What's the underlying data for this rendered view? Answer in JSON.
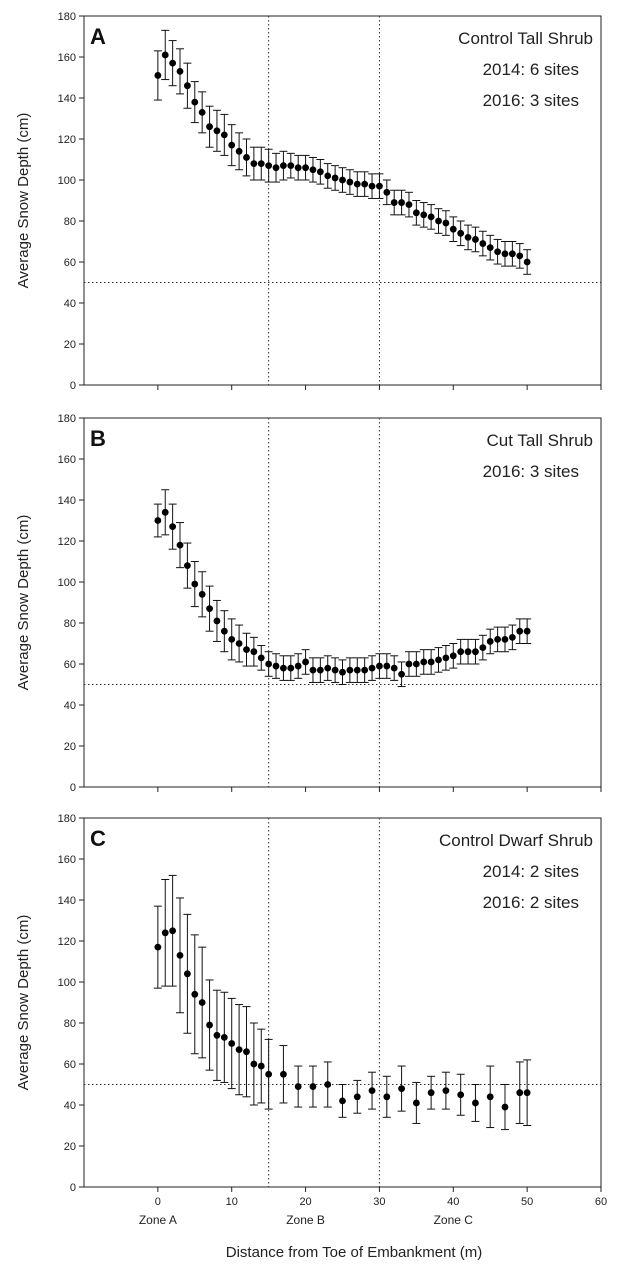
{
  "figure": {
    "xlabel": "Distance from Toe of Embankment (m)",
    "zone_labels": [
      {
        "label": "Zone A",
        "x": 0
      },
      {
        "label": "Zone B",
        "x": 20
      },
      {
        "label": "Zone C",
        "x": 40
      }
    ]
  },
  "chart_data": [
    {
      "type": "scatter",
      "panel": "A",
      "lines": [
        "Control Tall Shrub",
        "2014: 6 sites",
        "2016: 3 sites"
      ],
      "ylabel": "Average Snow Depth (cm)",
      "xlim": [
        -10,
        60
      ],
      "ylim": [
        0,
        180
      ],
      "xticks": [
        0,
        10,
        20,
        30,
        40,
        50,
        60
      ],
      "yticks": [
        0,
        20,
        40,
        60,
        80,
        100,
        120,
        140,
        160,
        180
      ],
      "show_xtick_labels": false,
      "vlines": [
        15,
        30
      ],
      "hline": 50,
      "points": [
        [
          0,
          151,
          12
        ],
        [
          1,
          161,
          12
        ],
        [
          2,
          157,
          11
        ],
        [
          3,
          153,
          11
        ],
        [
          4,
          146,
          11
        ],
        [
          5,
          138,
          10
        ],
        [
          6,
          133,
          10
        ],
        [
          7,
          126,
          10
        ],
        [
          8,
          124,
          10
        ],
        [
          9,
          122,
          10
        ],
        [
          10,
          117,
          10
        ],
        [
          11,
          114,
          9
        ],
        [
          12,
          111,
          9
        ],
        [
          13,
          108,
          8
        ],
        [
          14,
          108,
          8
        ],
        [
          15,
          107,
          8
        ],
        [
          16,
          106,
          7
        ],
        [
          17,
          107,
          7
        ],
        [
          18,
          107,
          6
        ],
        [
          19,
          106,
          6
        ],
        [
          20,
          106,
          6
        ],
        [
          21,
          105,
          6
        ],
        [
          22,
          104,
          6
        ],
        [
          23,
          102,
          6
        ],
        [
          24,
          101,
          6
        ],
        [
          25,
          100,
          6
        ],
        [
          26,
          99,
          6
        ],
        [
          27,
          98,
          6
        ],
        [
          28,
          98,
          6
        ],
        [
          29,
          97,
          6
        ],
        [
          30,
          97,
          6
        ],
        [
          31,
          94,
          6
        ],
        [
          32,
          89,
          6
        ],
        [
          33,
          89,
          6
        ],
        [
          34,
          88,
          6
        ],
        [
          35,
          84,
          6
        ],
        [
          36,
          83,
          6
        ],
        [
          37,
          82,
          6
        ],
        [
          38,
          80,
          6
        ],
        [
          39,
          79,
          6
        ],
        [
          40,
          76,
          6
        ],
        [
          41,
          74,
          6
        ],
        [
          42,
          72,
          6
        ],
        [
          43,
          71,
          6
        ],
        [
          44,
          69,
          6
        ],
        [
          45,
          67,
          6
        ],
        [
          46,
          65,
          6
        ],
        [
          47,
          64,
          6
        ],
        [
          48,
          64,
          6
        ],
        [
          49,
          63,
          6
        ],
        [
          50,
          60,
          6
        ]
      ]
    },
    {
      "type": "scatter",
      "panel": "B",
      "lines": [
        "Cut Tall Shrub",
        "2016: 3 sites"
      ],
      "ylabel": "Average Snow Depth (cm)",
      "xlim": [
        -10,
        60
      ],
      "ylim": [
        0,
        180
      ],
      "xticks": [
        0,
        10,
        20,
        30,
        40,
        50,
        60
      ],
      "yticks": [
        0,
        20,
        40,
        60,
        80,
        100,
        120,
        140,
        160,
        180
      ],
      "show_xtick_labels": false,
      "vlines": [
        15,
        30
      ],
      "hline": 50,
      "points": [
        [
          0,
          130,
          8
        ],
        [
          1,
          134,
          11
        ],
        [
          2,
          127,
          11
        ],
        [
          3,
          118,
          11
        ],
        [
          4,
          108,
          11
        ],
        [
          5,
          99,
          11
        ],
        [
          6,
          94,
          11
        ],
        [
          7,
          87,
          11
        ],
        [
          8,
          81,
          10
        ],
        [
          9,
          76,
          10
        ],
        [
          10,
          72,
          10
        ],
        [
          11,
          70,
          9
        ],
        [
          12,
          67,
          8
        ],
        [
          13,
          66,
          7
        ],
        [
          14,
          63,
          6
        ],
        [
          15,
          60,
          6
        ],
        [
          16,
          59,
          6
        ],
        [
          17,
          58,
          6
        ],
        [
          18,
          58,
          6
        ],
        [
          19,
          59,
          6
        ],
        [
          20,
          61,
          6
        ],
        [
          21,
          57,
          6
        ],
        [
          22,
          57,
          6
        ],
        [
          23,
          58,
          6
        ],
        [
          24,
          57,
          6
        ],
        [
          25,
          56,
          6
        ],
        [
          26,
          57,
          6
        ],
        [
          27,
          57,
          6
        ],
        [
          28,
          57,
          6
        ],
        [
          29,
          58,
          6
        ],
        [
          30,
          59,
          6
        ],
        [
          31,
          59,
          6
        ],
        [
          32,
          58,
          6
        ],
        [
          33,
          55,
          6
        ],
        [
          34,
          60,
          6
        ],
        [
          35,
          60,
          6
        ],
        [
          36,
          61,
          6
        ],
        [
          37,
          61,
          6
        ],
        [
          38,
          62,
          6
        ],
        [
          39,
          63,
          6
        ],
        [
          40,
          64,
          6
        ],
        [
          41,
          66,
          6
        ],
        [
          42,
          66,
          6
        ],
        [
          43,
          66,
          6
        ],
        [
          44,
          68,
          6
        ],
        [
          45,
          71,
          6
        ],
        [
          46,
          72,
          6
        ],
        [
          47,
          72,
          6
        ],
        [
          48,
          73,
          6
        ],
        [
          49,
          76,
          6
        ],
        [
          50,
          76,
          6
        ]
      ]
    },
    {
      "type": "scatter",
      "panel": "C",
      "lines": [
        "Control Dwarf Shrub",
        "2014: 2 sites",
        "2016: 2 sites"
      ],
      "ylabel": "Average Snow Depth (cm)",
      "xlim": [
        -10,
        60
      ],
      "ylim": [
        0,
        180
      ],
      "xticks": [
        0,
        10,
        20,
        30,
        40,
        50,
        60
      ],
      "yticks": [
        0,
        20,
        40,
        60,
        80,
        100,
        120,
        140,
        160,
        180
      ],
      "show_xtick_labels": true,
      "vlines": [
        15,
        30
      ],
      "hline": 50,
      "points": [
        [
          0,
          117,
          20
        ],
        [
          1,
          124,
          26
        ],
        [
          2,
          125,
          27
        ],
        [
          3,
          113,
          28
        ],
        [
          4,
          104,
          29
        ],
        [
          5,
          94,
          29
        ],
        [
          6,
          90,
          27
        ],
        [
          7,
          79,
          22
        ],
        [
          8,
          74,
          22
        ],
        [
          9,
          73,
          22
        ],
        [
          10,
          70,
          22
        ],
        [
          11,
          67,
          22
        ],
        [
          12,
          66,
          22
        ],
        [
          13,
          60,
          20
        ],
        [
          14,
          59,
          18
        ],
        [
          15,
          55,
          17
        ],
        [
          17,
          55,
          14
        ],
        [
          19,
          49,
          10
        ],
        [
          21,
          49,
          10
        ],
        [
          23,
          50,
          11
        ],
        [
          25,
          42,
          8
        ],
        [
          27,
          44,
          8
        ],
        [
          29,
          47,
          9
        ],
        [
          31,
          44,
          10
        ],
        [
          33,
          48,
          11
        ],
        [
          35,
          41,
          10
        ],
        [
          37,
          46,
          8
        ],
        [
          39,
          47,
          9
        ],
        [
          41,
          45,
          10
        ],
        [
          43,
          41,
          9
        ],
        [
          45,
          44,
          15
        ],
        [
          47,
          39,
          11
        ],
        [
          49,
          46,
          15
        ],
        [
          50,
          46,
          16
        ]
      ]
    }
  ]
}
